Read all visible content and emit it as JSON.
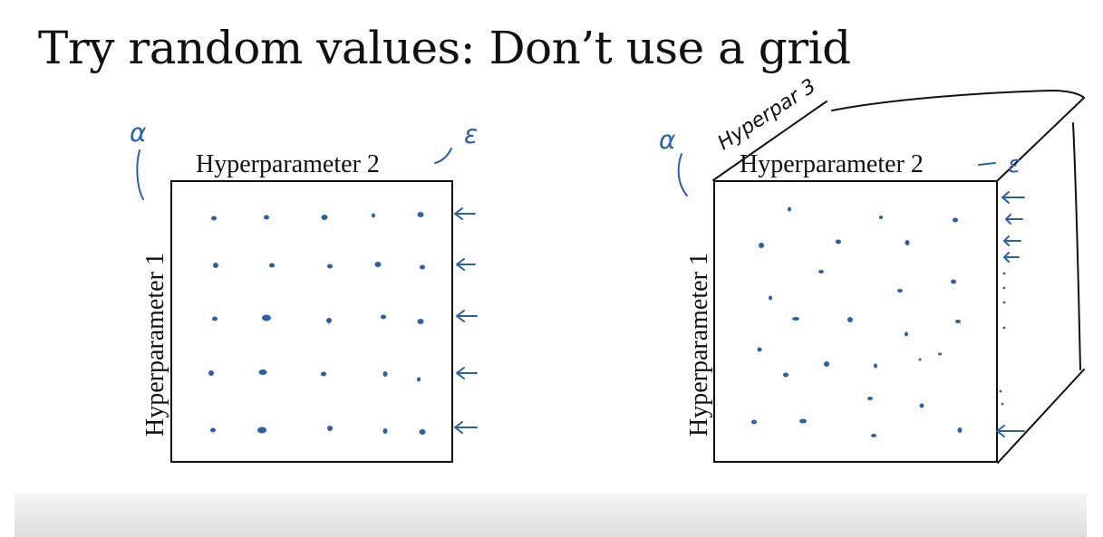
{
  "slide": {
    "title": "Try random values: Don’t use a grid"
  },
  "left_panel": {
    "x_label": "Hyperparameter 2",
    "y_label": "Hyperparameter 1",
    "note_y": "α",
    "note_x": "ε"
  },
  "right_panel": {
    "x_label": "Hyperparameter 2",
    "y_label": "Hyperparameter 1",
    "note_y": "α",
    "note_x": "ε",
    "note_depth": "Hyperpar 3"
  },
  "colors": {
    "ink": "#111111",
    "annotation": "#2b5fa8"
  }
}
